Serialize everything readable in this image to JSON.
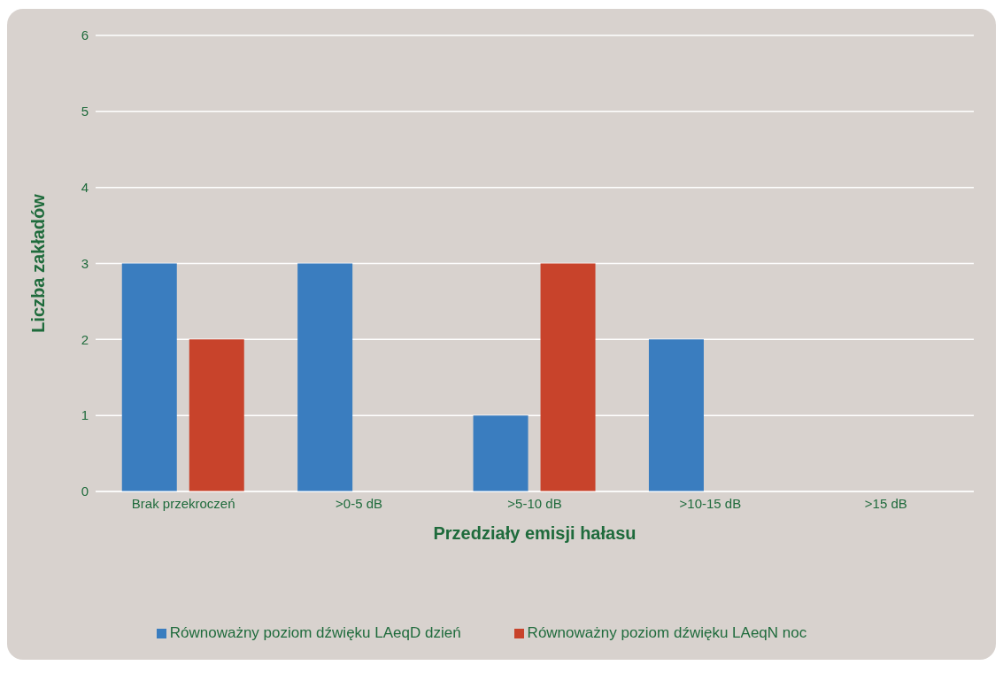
{
  "chart_data": {
    "type": "bar",
    "xlabel": "Przedziały emisji hałasu",
    "ylabel": "Liczba zakładów",
    "categories": [
      "Brak przekroczeń",
      ">0-5 dB",
      ">5-10 dB",
      ">10-15 dB",
      ">15 dB"
    ],
    "series": [
      {
        "name": "Równoważny poziom dźwięku LAeqD dzień",
        "color": "#3a7dbf",
        "values": [
          3,
          3,
          1,
          2,
          0
        ]
      },
      {
        "name": "Równoważny poziom dźwięku LAeqN noc",
        "color": "#c8432b",
        "values": [
          2,
          0,
          3,
          0,
          0
        ]
      }
    ],
    "ylim": [
      0,
      6
    ],
    "yticks": [
      0,
      1,
      2,
      3,
      4,
      5,
      6
    ],
    "grid": "y",
    "legend": "bottom"
  }
}
